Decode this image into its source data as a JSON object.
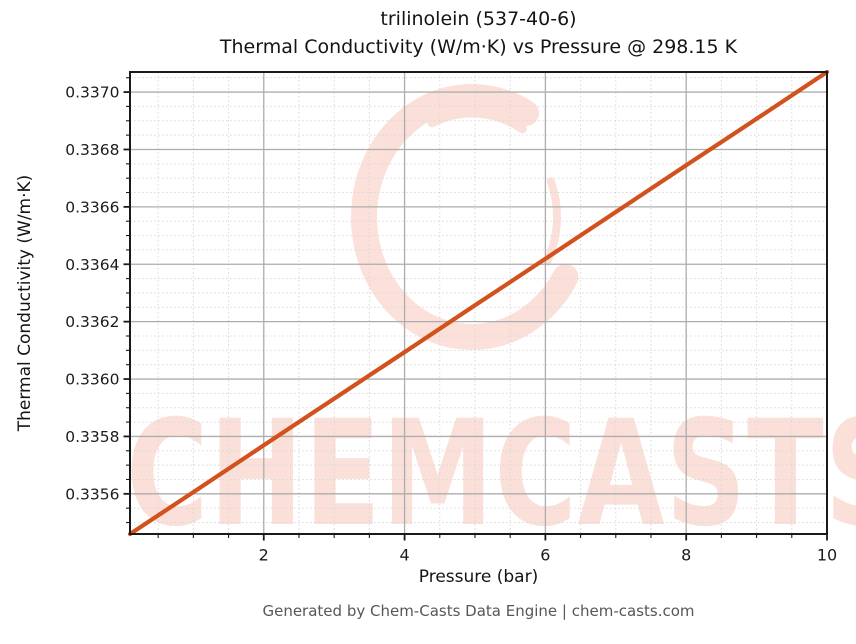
{
  "header": {
    "title_line1": "trilinolein (537-40-6)",
    "title_line2": "Thermal Conductivity (W/m·K) vs Pressure @ 298.15 K"
  },
  "watermark": {
    "text": "CHEMCASTS",
    "logo": "chemcasts-c-ring-logo",
    "color": "#e8603c",
    "opacity": 0.19
  },
  "footer": {
    "text": "Generated by Chem-Casts Data Engine | chem-casts.com"
  },
  "chart_data": {
    "type": "line",
    "title": "trilinolein (537-40-6)\nThermal Conductivity (W/m·K) vs Pressure @ 298.15 K",
    "xlabel": "Pressure (bar)",
    "ylabel": "Thermal Conductivity (W/m·K)",
    "xlim": [
      0.1,
      10
    ],
    "ylim": [
      0.33546,
      0.33707
    ],
    "xticks": [
      2,
      4,
      6,
      8,
      10
    ],
    "xtick_labels": [
      "2",
      "4",
      "6",
      "8",
      "10"
    ],
    "yticks": [
      0.3356,
      0.3358,
      0.336,
      0.3362,
      0.3364,
      0.3366,
      0.3368,
      0.337
    ],
    "ytick_labels": [
      "0.3356",
      "0.3358",
      "0.3360",
      "0.3362",
      "0.3364",
      "0.3366",
      "0.3368",
      "0.3370"
    ],
    "minor_xtick_step": 0.5,
    "minor_ytick_step": 5e-05,
    "grid": true,
    "legend": false,
    "line_color": "#d2521e",
    "series": [
      {
        "name": "Thermal Conductivity (W/m·K)",
        "color": "#d2521e",
        "x": [
          0.1,
          1,
          2,
          3,
          4,
          5,
          6,
          7,
          8,
          9,
          10
        ],
        "y": [
          0.33546,
          0.335606,
          0.335769,
          0.335932,
          0.336094,
          0.336257,
          0.336419,
          0.336582,
          0.336745,
          0.336907,
          0.33707
        ]
      }
    ]
  }
}
